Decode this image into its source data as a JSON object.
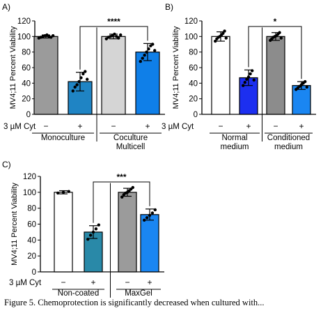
{
  "figure": {
    "caption": "Figure 5. Chemoprotection is significantly decreased when cultured with..."
  },
  "chart_data": [
    {
      "panel": "A)",
      "type": "bar",
      "ylabel": "MV4;11 Percent Viability",
      "ylim": [
        0,
        120
      ],
      "yticks": [
        0,
        20,
        40,
        60,
        80,
        100,
        120
      ],
      "treatment_label": "3 µM Cyt",
      "categories": [
        "−",
        "+",
        "−",
        "+"
      ],
      "groups": [
        {
          "label": [
            "Monoculture"
          ]
        },
        {
          "label": [
            "Coculture",
            "Multicell"
          ]
        }
      ],
      "values": [
        100,
        42,
        100,
        80
      ],
      "errors": [
        2,
        12,
        3,
        11
      ],
      "points": [
        [
          98,
          99,
          100,
          101,
          102,
          100,
          99,
          101
        ],
        [
          30,
          35,
          38,
          42,
          47,
          52,
          55,
          45
        ],
        [
          97,
          99,
          100,
          101,
          103,
          100,
          98,
          102
        ],
        [
          68,
          72,
          76,
          80,
          84,
          88,
          90,
          82
        ]
      ],
      "colors": [
        "#9b9b9b",
        "#1f84c4",
        "#d5d5d5",
        "#0f7fe8"
      ],
      "significance": {
        "from": 1,
        "to": 3,
        "label": "****"
      }
    },
    {
      "panel": "B)",
      "type": "bar",
      "ylabel": "MV4;11 Percent Viability",
      "ylim": [
        0,
        120
      ],
      "yticks": [
        0,
        20,
        40,
        60,
        80,
        100,
        120
      ],
      "treatment_label": "3 µM Cyt",
      "categories": [
        "−",
        "+",
        "−",
        "+"
      ],
      "groups": [
        {
          "label": [
            "Normal",
            "medium"
          ]
        },
        {
          "label": [
            "Conditioned",
            "medium"
          ]
        }
      ],
      "values": [
        100,
        47,
        100,
        37
      ],
      "errors": [
        6,
        10,
        5,
        5
      ],
      "points": [
        [
          94,
          97,
          99,
          100,
          102,
          104,
          107,
          98
        ],
        [
          37,
          41,
          45,
          48,
          52,
          56,
          44
        ],
        [
          95,
          97,
          99,
          100,
          101,
          103,
          105,
          98
        ],
        [
          32,
          34,
          36,
          38,
          40,
          42,
          35
        ]
      ],
      "colors": [
        "#ffffff",
        "#1c2ff0",
        "#8c8c8c",
        "#1a86f2"
      ],
      "significance": {
        "from": 1,
        "to": 3,
        "label": "*"
      }
    },
    {
      "panel": "C)",
      "type": "bar",
      "ylabel": "MV4;11 Percent Viability",
      "ylim": [
        0,
        120
      ],
      "yticks": [
        0,
        20,
        40,
        60,
        80,
        100,
        120
      ],
      "treatment_label": "3 µM Cyt",
      "categories": [
        "−",
        "+",
        "−",
        "+"
      ],
      "groups": [
        {
          "label": [
            "Non-coated"
          ]
        },
        {
          "label": [
            "MaxGel"
          ]
        }
      ],
      "values": [
        100,
        50,
        100,
        72
      ],
      "errors": [
        2,
        8,
        5,
        7
      ],
      "points": [
        [
          99,
          100,
          101
        ],
        [
          41,
          46,
          50,
          54,
          59
        ],
        [
          94,
          97,
          99,
          100,
          102,
          104,
          106
        ],
        [
          65,
          68,
          71,
          74,
          78
        ]
      ],
      "colors": [
        "#ffffff",
        "#2989a8",
        "#9b9b9b",
        "#1a86f2"
      ],
      "significance": {
        "from": 1,
        "to": 3,
        "label": "***"
      }
    }
  ]
}
